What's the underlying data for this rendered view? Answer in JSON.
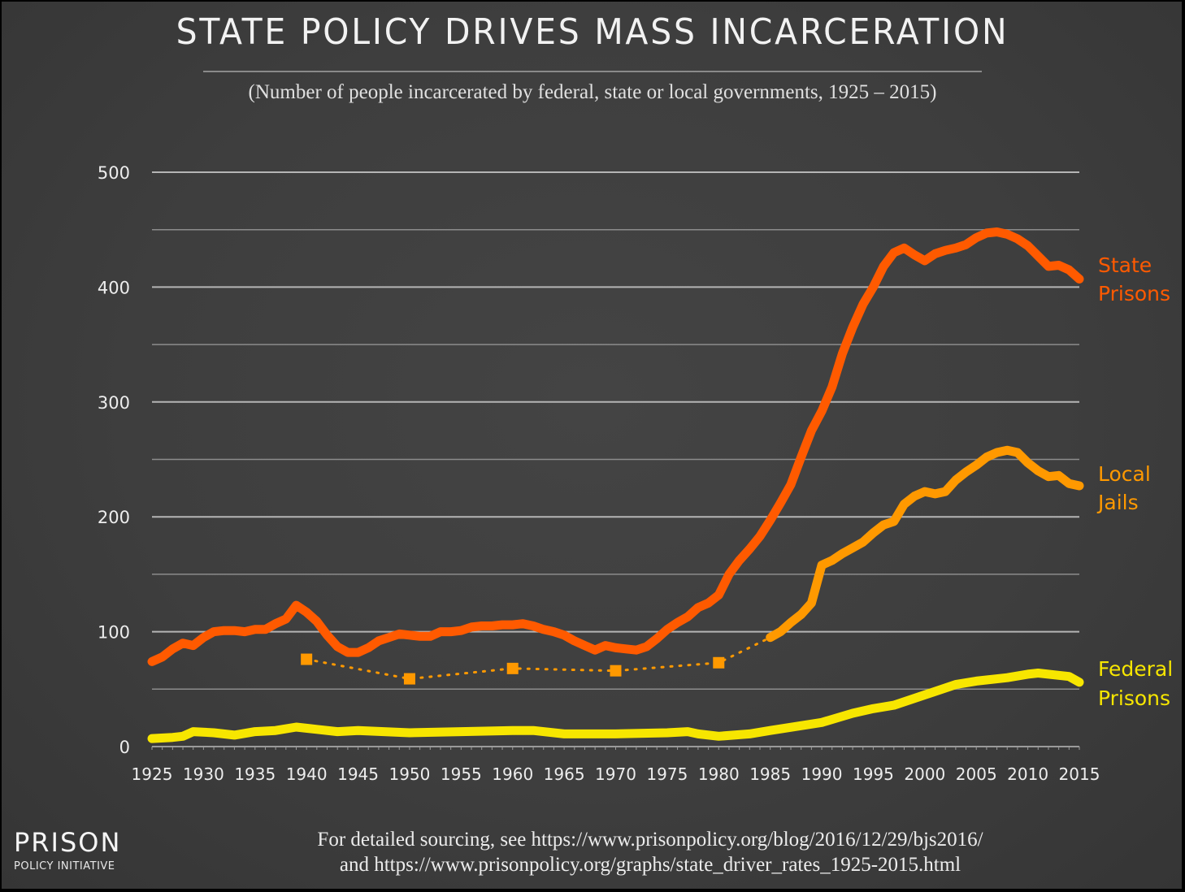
{
  "chart_data": {
    "type": "line",
    "title": "STATE POLICY DRIVES MASS INCARCERATION",
    "subtitle": "(Number of people incarcerated by federal, state or local governments, 1925 – 2015)",
    "xlabel": "",
    "ylabel": "",
    "xlim": [
      1925,
      2015
    ],
    "ylim": [
      0,
      500
    ],
    "x_ticks": [
      "1925",
      "1930",
      "1935",
      "1940",
      "1945",
      "1950",
      "1955",
      "1960",
      "1965",
      "1970",
      "1975",
      "1980",
      "1985",
      "1990",
      "1995",
      "2000",
      "2005",
      "2010",
      "2015"
    ],
    "y_ticks": [
      "0",
      "100",
      "200",
      "300",
      "400",
      "500"
    ],
    "grid": "horizontal",
    "legend": "inline-right",
    "series": [
      {
        "name": "State Prisons",
        "label_lines": [
          "State",
          "Prisons"
        ],
        "color": "#ff5a00",
        "style": "solid",
        "x": [
          1925,
          1926,
          1927,
          1928,
          1929,
          1930,
          1931,
          1932,
          1933,
          1934,
          1935,
          1936,
          1937,
          1938,
          1939,
          1940,
          1941,
          1942,
          1943,
          1944,
          1945,
          1946,
          1947,
          1948,
          1949,
          1950,
          1951,
          1952,
          1953,
          1954,
          1955,
          1956,
          1957,
          1958,
          1959,
          1960,
          1961,
          1962,
          1963,
          1964,
          1965,
          1966,
          1967,
          1968,
          1969,
          1970,
          1971,
          1972,
          1973,
          1974,
          1975,
          1976,
          1977,
          1978,
          1979,
          1980,
          1981,
          1982,
          1983,
          1984,
          1985,
          1986,
          1987,
          1988,
          1989,
          1990,
          1991,
          1992,
          1993,
          1994,
          1995,
          1996,
          1997,
          1998,
          1999,
          2000,
          2001,
          2002,
          2003,
          2004,
          2005,
          2006,
          2007,
          2008,
          2009,
          2010,
          2011,
          2012,
          2013,
          2014,
          2015
        ],
        "values": [
          74,
          78,
          85,
          90,
          88,
          95,
          100,
          101,
          101,
          100,
          102,
          102,
          107,
          111,
          123,
          117,
          109,
          97,
          87,
          82,
          82,
          86,
          92,
          95,
          98,
          97,
          96,
          96,
          100,
          100,
          101,
          104,
          105,
          105,
          106,
          106,
          107,
          105,
          102,
          100,
          97,
          92,
          88,
          84,
          88,
          86,
          85,
          84,
          87,
          94,
          102,
          108,
          113,
          121,
          125,
          132,
          150,
          162,
          172,
          183,
          197,
          212,
          228,
          252,
          275,
          292,
          313,
          342,
          365,
          385,
          400,
          418,
          430,
          434,
          428,
          423,
          429,
          432,
          434,
          437,
          443,
          447,
          448,
          446,
          442,
          436,
          427,
          418,
          419,
          415,
          407
        ]
      },
      {
        "name": "Local Jails",
        "label_lines": [
          "Local",
          "Jails"
        ],
        "color": "#ff9900",
        "style": "solid",
        "x": [
          1985,
          1986,
          1987,
          1988,
          1989,
          1990,
          1991,
          1992,
          1993,
          1994,
          1995,
          1996,
          1997,
          1998,
          1999,
          2000,
          2001,
          2002,
          2003,
          2004,
          2005,
          2006,
          2007,
          2008,
          2009,
          2010,
          2011,
          2012,
          2013,
          2014,
          2015
        ],
        "values": [
          95,
          100,
          108,
          115,
          125,
          158,
          162,
          168,
          173,
          178,
          186,
          193,
          196,
          211,
          218,
          222,
          220,
          222,
          232,
          239,
          245,
          252,
          256,
          258,
          256,
          247,
          240,
          235,
          236,
          229,
          227
        ],
        "sparse_points": {
          "x": [
            1940,
            1950,
            1960,
            1970,
            1980
          ],
          "values": [
            76,
            59,
            68,
            66,
            73
          ],
          "style": "dotted-with-square-markers"
        }
      },
      {
        "name": "Federal Prisons",
        "label_lines": [
          "Federal",
          "Prisons"
        ],
        "color": "#f7e600",
        "style": "solid",
        "x": [
          1925,
          1927,
          1928,
          1929,
          1931,
          1933,
          1935,
          1937,
          1939,
          1941,
          1943,
          1945,
          1950,
          1955,
          1960,
          1962,
          1965,
          1970,
          1975,
          1977,
          1978,
          1980,
          1983,
          1985,
          1990,
          1993,
          1995,
          1997,
          2000,
          2003,
          2005,
          2008,
          2010,
          2011,
          2013,
          2014,
          2015
        ],
        "values": [
          7,
          8,
          9,
          13,
          12,
          10,
          13,
          14,
          17,
          15,
          13,
          14,
          12,
          13,
          14,
          14,
          11,
          11,
          12,
          13,
          11,
          9,
          11,
          14,
          21,
          29,
          33,
          36,
          45,
          54,
          57,
          60,
          63,
          64,
          62,
          61,
          56
        ]
      }
    ]
  },
  "footer": {
    "logo_main": "PRISON",
    "logo_sub": "POLICY INITIATIVE",
    "source_line1": "For detailed sourcing, see https://www.prisonpolicy.org/blog/2016/12/29/bjs2016/",
    "source_line2": "and https://www.prisonpolicy.org/graphs/state_driver_rates_1925-2015.html"
  }
}
